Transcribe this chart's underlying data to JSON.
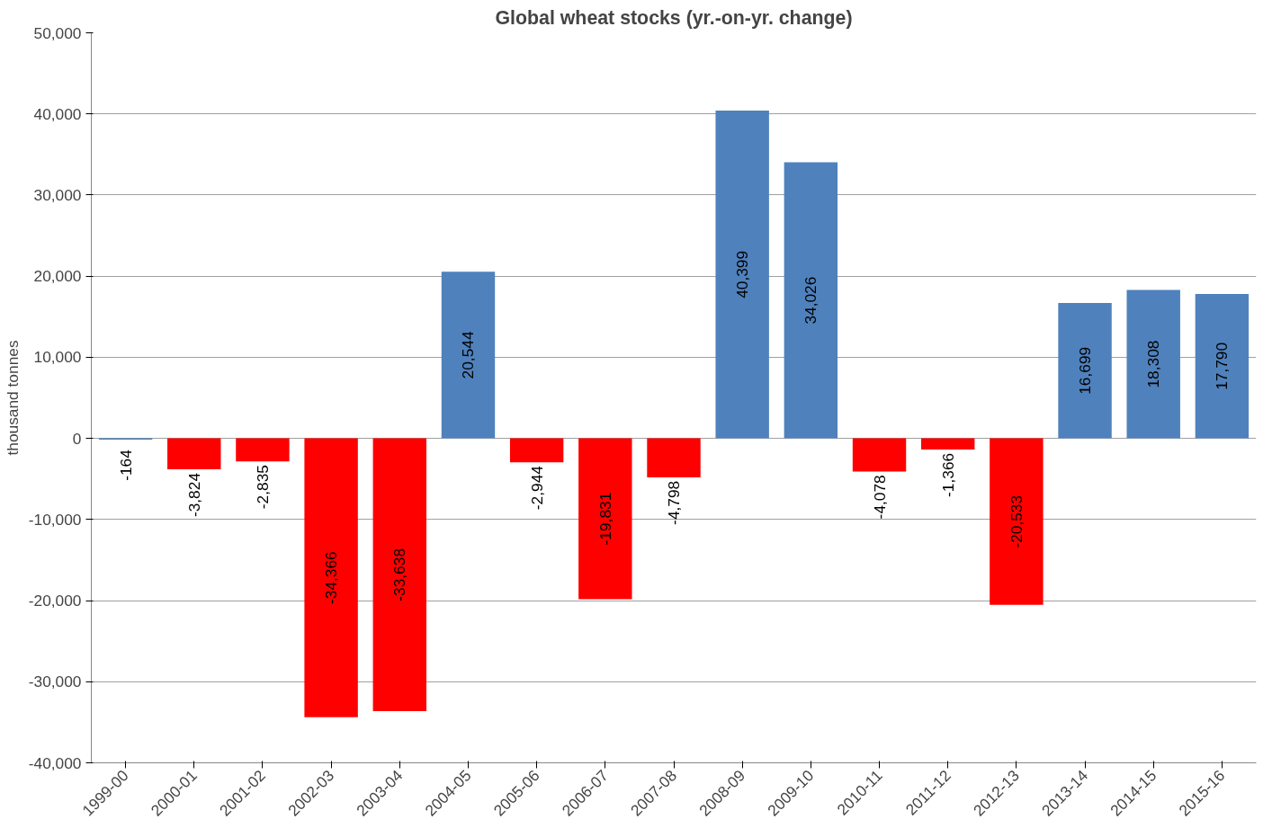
{
  "chart_data": {
    "type": "bar",
    "title": "Global wheat stocks (yr.-on-yr. change)",
    "ylabel": "thousand tonnes",
    "categories": [
      "1999-00",
      "2000-01",
      "2001-02",
      "2002-03",
      "2003-04",
      "2004-05",
      "2005-06",
      "2006-07",
      "2007-08",
      "2008-09",
      "2009-10",
      "2010-11",
      "2011-12",
      "2012-13",
      "2013-14",
      "2014-15",
      "2015-16"
    ],
    "values": [
      -164,
      -3824,
      -2835,
      -34366,
      -33638,
      20544,
      -2944,
      -19831,
      -4798,
      40399,
      34026,
      -4078,
      -1366,
      -20533,
      16699,
      18308,
      17790
    ],
    "value_labels": [
      "-164",
      "-3,824",
      "-2,835",
      "-34,366",
      "-33,638",
      "20,544",
      "-2,944",
      "-19,831",
      "-4,798",
      "40,399",
      "34,026",
      "-4,078",
      "-1,366",
      "-20,533",
      "16,699",
      "18,308",
      "17,790"
    ],
    "colors": [
      "#4f81bd",
      "#ff0000",
      "#ff0000",
      "#ff0000",
      "#ff0000",
      "#4f81bd",
      "#ff0000",
      "#ff0000",
      "#ff0000",
      "#4f81bd",
      "#4f81bd",
      "#ff0000",
      "#ff0000",
      "#ff0000",
      "#4f81bd",
      "#4f81bd",
      "#4f81bd"
    ],
    "ylim": [
      -40000,
      50000
    ],
    "yticks": [
      {
        "value": -40000,
        "label": "-40,000"
      },
      {
        "value": -30000,
        "label": "-30,000"
      },
      {
        "value": -20000,
        "label": "-20,000"
      },
      {
        "value": -10000,
        "label": "-10,000"
      },
      0,
      {
        "value": 10000,
        "label": "10,000"
      },
      {
        "value": 20000,
        "label": "20,000"
      },
      {
        "value": 30000,
        "label": "30,000"
      },
      {
        "value": 40000,
        "label": "40,000"
      },
      {
        "value": 50000,
        "label": "50,000"
      }
    ],
    "grid": "y"
  }
}
